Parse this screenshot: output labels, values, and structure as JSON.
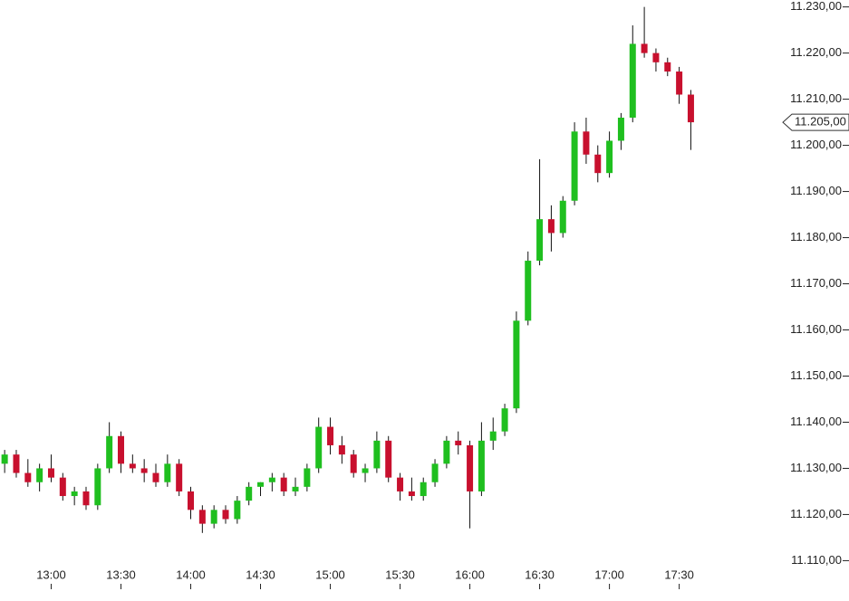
{
  "chart_data": {
    "type": "candlestick",
    "x": [
      "12:40",
      "12:45",
      "12:50",
      "12:55",
      "13:00",
      "13:05",
      "13:10",
      "13:15",
      "13:20",
      "13:25",
      "13:30",
      "13:35",
      "13:40",
      "13:45",
      "13:50",
      "13:55",
      "14:00",
      "14:05",
      "14:10",
      "14:15",
      "14:20",
      "14:25",
      "14:30",
      "14:35",
      "14:40",
      "14:45",
      "14:50",
      "14:55",
      "15:00",
      "15:05",
      "15:10",
      "15:15",
      "15:20",
      "15:25",
      "15:30",
      "15:35",
      "15:40",
      "15:45",
      "15:50",
      "15:55",
      "16:00",
      "16:05",
      "16:10",
      "16:15",
      "16:20",
      "16:25",
      "16:30",
      "16:35",
      "16:40",
      "16:45",
      "16:50",
      "16:55",
      "17:00",
      "17:05",
      "17:10",
      "17:15",
      "17:20",
      "17:25",
      "17:30",
      "17:35"
    ],
    "open": [
      11131,
      11133,
      11129,
      11127,
      11130,
      11128,
      11124,
      11125,
      11122,
      11130,
      11137,
      11131,
      11130,
      11129,
      11127,
      11131,
      11125,
      11121,
      11118,
      11121,
      11119,
      11123,
      11126,
      11127,
      11128,
      11125,
      11126,
      11130,
      11139,
      11135,
      11133,
      11129,
      11130,
      11136,
      11128,
      11125,
      11124,
      11127,
      11131,
      11136,
      11135,
      11125,
      11136,
      11138,
      11143,
      11162,
      11175,
      11184,
      11181,
      11188,
      11203,
      11198,
      11194,
      11201,
      11206,
      11222,
      11220,
      11218,
      11216,
      11211
    ],
    "high": [
      11134,
      11134,
      11132,
      11131,
      11133,
      11129,
      11126,
      11126,
      11131,
      11140,
      11138,
      11133,
      11132,
      11131,
      11133,
      11132,
      11126,
      11122,
      11122,
      11122,
      11124,
      11127,
      11127,
      11129,
      11129,
      11128,
      11131,
      11141,
      11141,
      11137,
      11134,
      11131,
      11138,
      11137,
      11129,
      11128,
      11128,
      11132,
      11137,
      11138,
      11136,
      11140,
      11141,
      11144,
      11164,
      11177,
      11197,
      11187,
      11189,
      11205,
      11206,
      11200,
      11203,
      11207,
      11226,
      11230,
      11221,
      11219,
      11217,
      11212
    ],
    "low": [
      11129,
      11128,
      11126,
      11125,
      11127,
      11123,
      11122,
      11121,
      11121,
      11129,
      11129,
      11129,
      11127,
      11126,
      11126,
      11124,
      11119,
      11116,
      11117,
      11118,
      11118,
      11122,
      11124,
      11125,
      11124,
      11124,
      11125,
      11129,
      11133,
      11131,
      11128,
      11127,
      11129,
      11127,
      11123,
      11123,
      11123,
      11126,
      11130,
      11133,
      11117,
      11124,
      11134,
      11137,
      11142,
      11161,
      11174,
      11177,
      11180,
      11187,
      11196,
      11192,
      11193,
      11199,
      11205,
      11219,
      11216,
      11215,
      11209,
      11199
    ],
    "close": [
      11133,
      11129,
      11127,
      11130,
      11128,
      11124,
      11125,
      11122,
      11130,
      11137,
      11131,
      11130,
      11129,
      11127,
      11131,
      11125,
      11121,
      11118,
      11121,
      11119,
      11123,
      11126,
      11127,
      11128,
      11125,
      11126,
      11130,
      11139,
      11135,
      11133,
      11129,
      11130,
      11136,
      11128,
      11125,
      11124,
      11127,
      11131,
      11136,
      11135,
      11125,
      11136,
      11138,
      11143,
      11162,
      11175,
      11184,
      11181,
      11188,
      11203,
      11198,
      11194,
      11201,
      11206,
      11222,
      11220,
      11218,
      11216,
      11211,
      11205
    ],
    "up_color": "#1fbf1f",
    "down_color": "#c8102e",
    "wick_color": "#111111",
    "xlim": [
      "12:38",
      "18:13"
    ],
    "xticks": [
      "13:00",
      "13:30",
      "14:00",
      "14:30",
      "15:00",
      "15:30",
      "16:00",
      "16:30",
      "17:00",
      "17:30"
    ],
    "ylim": [
      11104,
      11231.5
    ],
    "yticks": [
      {
        "value": 11110,
        "label": "11.110,00"
      },
      {
        "value": 11120,
        "label": "11.120,00"
      },
      {
        "value": 11130,
        "label": "11.130,00"
      },
      {
        "value": 11140,
        "label": "11.140,00"
      },
      {
        "value": 11150,
        "label": "11.150,00"
      },
      {
        "value": 11160,
        "label": "11.160,00"
      },
      {
        "value": 11170,
        "label": "11.170,00"
      },
      {
        "value": 11180,
        "label": "11.180,00"
      },
      {
        "value": 11190,
        "label": "11.190,00"
      },
      {
        "value": 11200,
        "label": "11.200,00"
      },
      {
        "value": 11210,
        "label": "11.210,00"
      },
      {
        "value": 11220,
        "label": "11.220,00"
      },
      {
        "value": 11230,
        "label": "11.230,00"
      }
    ],
    "last_price": {
      "value": 11205,
      "label": "11.205,00"
    }
  }
}
